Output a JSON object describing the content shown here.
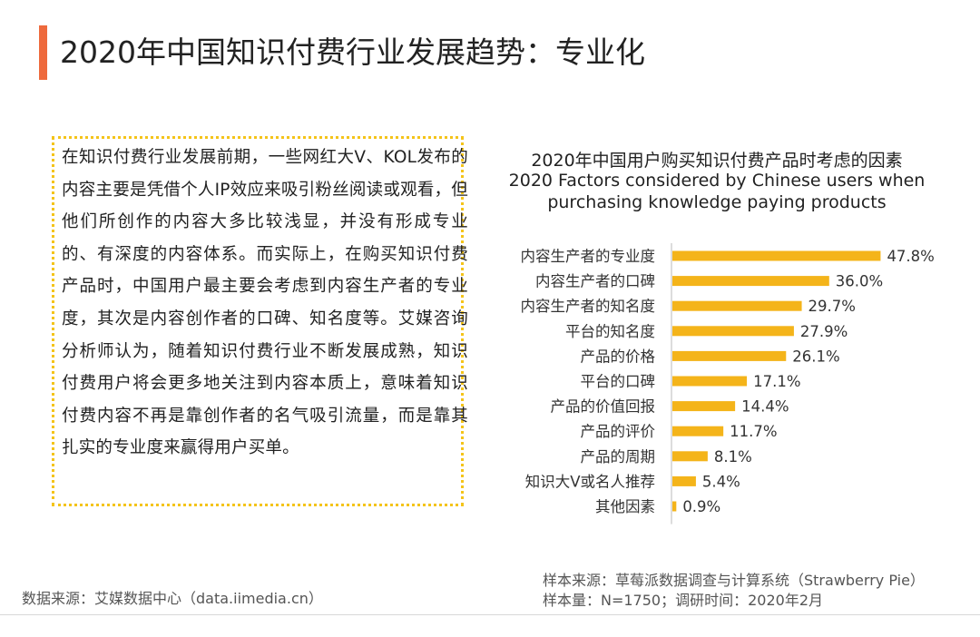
{
  "header": {
    "title": "2020年中国知识付费行业发展趋势：专业化"
  },
  "colors": {
    "accent": "#ee6a3d",
    "bar": "#f4b41a",
    "box_border": "#f4c41a"
  },
  "text_box": {
    "paragraph": "在知识付费行业发展前期，一些网红大V、KOL发布的内容主要是凭借个人IP效应来吸引粉丝阅读或观看，但他们所创作的内容大多比较浅显，并没有形成专业的、有深度的内容体系。而实际上，在购买知识付费产品时，中国用户最主要会考虑到内容生产者的专业度，其次是内容创作者的口碑、知名度等。艾媒咨询分析师认为，随着知识付费行业不断发展成熟，知识付费用户将会更多地关注到内容本质上，意味着知识付费内容不再是靠创作者的名气吸引流量，而是靠其扎实的专业度来赢得用户买单。"
  },
  "chart_data": {
    "type": "bar",
    "orientation": "horizontal",
    "title": "2020年中国用户购买知识付费产品时考虑的因素",
    "subtitle_line1": "2020 Factors considered by Chinese users when",
    "subtitle_line2": "purchasing knowledge paying products",
    "categories": [
      "内容生产者的专业度",
      "内容生产者的口碑",
      "内容生产者的知名度",
      "平台的知名度",
      "产品的价格",
      "平台的口碑",
      "产品的价值回报",
      "产品的评价",
      "产品的周期",
      "知识大V或名人推荐",
      "其他因素"
    ],
    "values": [
      47.8,
      36.0,
      29.7,
      27.9,
      26.1,
      17.1,
      14.4,
      11.7,
      8.1,
      5.4,
      0.9
    ],
    "value_labels": [
      "47.8%",
      "36.0%",
      "29.7%",
      "27.9%",
      "26.1%",
      "17.1%",
      "14.4%",
      "11.7%",
      "8.1%",
      "5.4%",
      "0.9%"
    ],
    "unit": "%",
    "xlim": [
      0,
      50
    ],
    "grid": false,
    "legend": "none"
  },
  "footer": {
    "source": "数据来源：艾媒数据中心（data.iimedia.cn）",
    "sample_source": "样本来源：草莓派数据调查与计算系统（Strawberry Pie）",
    "sample_info": "样本量：N=1750；调研时间：2020年2月"
  }
}
